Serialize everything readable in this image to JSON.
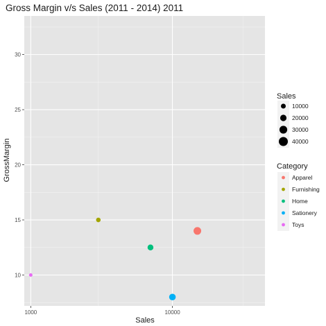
{
  "chart_data": {
    "type": "scatter",
    "title": "Gross Margin v/s Sales (2011 - 2014)   2011",
    "xlabel": "Sales",
    "ylabel": "GrossMargin",
    "x_ticks": [
      1000,
      10000
    ],
    "x_tick_labels": [
      "1000",
      "10000"
    ],
    "y_ticks": [
      10,
      15,
      20,
      25,
      30
    ],
    "y_tick_labels": [
      "10",
      "15",
      "20",
      "25",
      "30"
    ],
    "x_range": [
      900,
      45000
    ],
    "y_range": [
      7.2,
      33.5
    ],
    "grid": true,
    "background": "#e5e5e5",
    "points": [
      {
        "category": "Apparel",
        "x": 15000,
        "y": 14,
        "size": 15000,
        "color": "#f8766d"
      },
      {
        "category": "Furnishing",
        "x": 3000,
        "y": 15,
        "size": 3000,
        "color": "#a3a500"
      },
      {
        "category": "Home",
        "x": 7000,
        "y": 12.5,
        "size": 7000,
        "color": "#00bf7d"
      },
      {
        "category": "Sationery",
        "x": 10000,
        "y": 8,
        "size": 10000,
        "color": "#00b0f6"
      },
      {
        "category": "Toys",
        "x": 1000,
        "y": 10,
        "size": 1000,
        "color": "#e76bf3"
      }
    ],
    "legend_size": {
      "title": "Sales",
      "values": [
        10000,
        20000,
        30000,
        40000
      ],
      "labels": [
        "10000",
        "20000",
        "30000",
        "40000"
      ]
    },
    "legend_color": {
      "title": "Category",
      "items": [
        {
          "label": "Apparel",
          "color": "#f8766d"
        },
        {
          "label": "Furnishing",
          "color": "#a3a500"
        },
        {
          "label": "Home",
          "color": "#00bf7d"
        },
        {
          "label": "Sationery",
          "color": "#00b0f6"
        },
        {
          "label": "Toys",
          "color": "#e76bf3"
        }
      ]
    },
    "legend_position": "right"
  }
}
